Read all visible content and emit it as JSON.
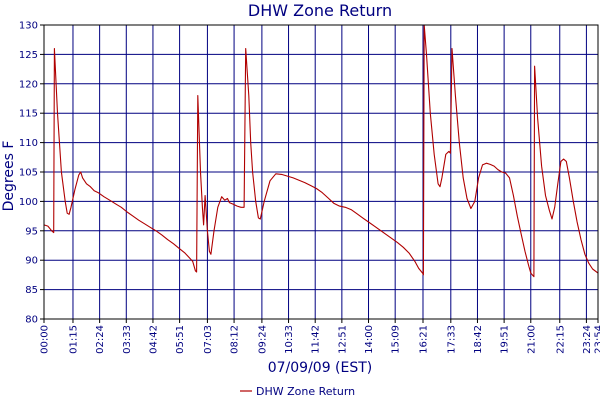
{
  "chart_data": {
    "type": "line",
    "title": "DHW Zone Return",
    "xlabel": "07/09/09 (EST)",
    "ylabel": "Degrees F",
    "ylim": [
      80,
      130
    ],
    "yticks": [
      80,
      85,
      90,
      95,
      100,
      105,
      110,
      115,
      120,
      125,
      130
    ],
    "xlim": [
      "00:00",
      "23:54"
    ],
    "xticks": [
      "00:00",
      "01:15",
      "02:24",
      "03:33",
      "04:42",
      "05:51",
      "07:03",
      "08:12",
      "09:24",
      "10:33",
      "11:42",
      "12:51",
      "14:00",
      "15:09",
      "16:21",
      "17:33",
      "18:42",
      "19:51",
      "21:00",
      "22:15",
      "23:24",
      "23:54"
    ],
    "grid": true,
    "legend_position": "bottom-center",
    "colors": {
      "line": "#b00000",
      "grid": "#000080",
      "axis": "#000000",
      "text": "#000080"
    },
    "series": [
      {
        "name": "DHW Zone Return",
        "points": [
          [
            "00:00",
            96
          ],
          [
            "00:10",
            95.8
          ],
          [
            "00:20",
            95
          ],
          [
            "00:25",
            94.7
          ],
          [
            "00:27",
            126
          ],
          [
            "00:35",
            115
          ],
          [
            "00:45",
            105
          ],
          [
            "00:55",
            100
          ],
          [
            "01:00",
            98
          ],
          [
            "01:05",
            97.8
          ],
          [
            "01:10",
            99
          ],
          [
            "01:20",
            102
          ],
          [
            "01:30",
            104.5
          ],
          [
            "01:35",
            105
          ],
          [
            "01:40",
            104
          ],
          [
            "01:50",
            103
          ],
          [
            "02:00",
            102.5
          ],
          [
            "02:10",
            101.8
          ],
          [
            "02:20",
            101.5
          ],
          [
            "02:35",
            100.8
          ],
          [
            "02:50",
            100.2
          ],
          [
            "03:05",
            99.6
          ],
          [
            "03:20",
            99
          ],
          [
            "03:35",
            98.2
          ],
          [
            "03:50",
            97.5
          ],
          [
            "04:05",
            96.8
          ],
          [
            "04:20",
            96.2
          ],
          [
            "04:35",
            95.6
          ],
          [
            "04:50",
            95
          ],
          [
            "05:05",
            94.3
          ],
          [
            "05:20",
            93.5
          ],
          [
            "05:35",
            92.8
          ],
          [
            "05:50",
            92
          ],
          [
            "06:05",
            91.2
          ],
          [
            "06:15",
            90.5
          ],
          [
            "06:25",
            89.8
          ],
          [
            "06:32",
            88.2
          ],
          [
            "06:35",
            88
          ],
          [
            "06:38",
            118
          ],
          [
            "06:45",
            105
          ],
          [
            "06:50",
            99
          ],
          [
            "06:53",
            96
          ],
          [
            "06:57",
            101
          ],
          [
            "07:03",
            95
          ],
          [
            "07:08",
            91.5
          ],
          [
            "07:12",
            91
          ],
          [
            "07:20",
            95
          ],
          [
            "07:30",
            99
          ],
          [
            "07:40",
            100.8
          ],
          [
            "07:48",
            100.2
          ],
          [
            "07:55",
            100.5
          ],
          [
            "08:00",
            99.8
          ],
          [
            "08:10",
            99.5
          ],
          [
            "08:20",
            99.2
          ],
          [
            "08:30",
            99
          ],
          [
            "08:38",
            99
          ],
          [
            "08:42",
            126
          ],
          [
            "08:50",
            118
          ],
          [
            "08:55",
            110
          ],
          [
            "09:00",
            105
          ],
          [
            "09:08",
            100
          ],
          [
            "09:15",
            97.2
          ],
          [
            "09:20",
            97
          ],
          [
            "09:30",
            100
          ],
          [
            "09:45",
            103.5
          ],
          [
            "10:00",
            104.7
          ],
          [
            "10:15",
            104.6
          ],
          [
            "10:30",
            104.3
          ],
          [
            "10:45",
            104
          ],
          [
            "11:00",
            103.6
          ],
          [
            "11:15",
            103.2
          ],
          [
            "11:30",
            102.7
          ],
          [
            "11:45",
            102.2
          ],
          [
            "12:00",
            101.5
          ],
          [
            "12:15",
            100.6
          ],
          [
            "12:30",
            99.7
          ],
          [
            "12:45",
            99.2
          ],
          [
            "13:00",
            99
          ],
          [
            "13:15",
            98.6
          ],
          [
            "13:30",
            97.9
          ],
          [
            "13:45",
            97.2
          ],
          [
            "14:00",
            96.5
          ],
          [
            "14:15",
            95.8
          ],
          [
            "14:30",
            95.1
          ],
          [
            "14:45",
            94.4
          ],
          [
            "15:00",
            93.7
          ],
          [
            "15:15",
            93
          ],
          [
            "15:30",
            92.2
          ],
          [
            "15:45",
            91.2
          ],
          [
            "16:00",
            89.8
          ],
          [
            "16:10",
            88.6
          ],
          [
            "16:20",
            87.8
          ],
          [
            "16:22",
            87.5
          ],
          [
            "16:24",
            130
          ],
          [
            "16:30",
            125
          ],
          [
            "16:40",
            115
          ],
          [
            "16:50",
            108
          ],
          [
            "17:00",
            103
          ],
          [
            "17:05",
            102.5
          ],
          [
            "17:10",
            104
          ],
          [
            "17:20",
            108
          ],
          [
            "17:28",
            108.5
          ],
          [
            "17:32",
            108.2
          ],
          [
            "17:36",
            126
          ],
          [
            "17:45",
            118
          ],
          [
            "17:55",
            110
          ],
          [
            "18:05",
            104
          ],
          [
            "18:15",
            100.5
          ],
          [
            "18:25",
            98.8
          ],
          [
            "18:35",
            100
          ],
          [
            "18:45",
            104
          ],
          [
            "18:55",
            106.2
          ],
          [
            "19:05",
            106.5
          ],
          [
            "19:15",
            106.3
          ],
          [
            "19:25",
            106
          ],
          [
            "19:35",
            105.4
          ],
          [
            "19:45",
            105
          ],
          [
            "19:55",
            104.8
          ],
          [
            "20:05",
            104
          ],
          [
            "20:15",
            101
          ],
          [
            "20:25",
            97.5
          ],
          [
            "20:35",
            94.5
          ],
          [
            "20:45",
            91.5
          ],
          [
            "20:55",
            89
          ],
          [
            "21:00",
            87.8
          ],
          [
            "21:08",
            87.2
          ],
          [
            "21:10",
            123
          ],
          [
            "21:18",
            114
          ],
          [
            "21:28",
            106
          ],
          [
            "21:38",
            101
          ],
          [
            "21:48",
            98.5
          ],
          [
            "21:55",
            97
          ],
          [
            "22:02",
            99
          ],
          [
            "22:10",
            103
          ],
          [
            "22:18",
            106.8
          ],
          [
            "22:25",
            107.2
          ],
          [
            "22:32",
            106.8
          ],
          [
            "22:40",
            104
          ],
          [
            "22:50",
            100
          ],
          [
            "23:00",
            96.5
          ],
          [
            "23:10",
            93.5
          ],
          [
            "23:20",
            91
          ],
          [
            "23:30",
            89.5
          ],
          [
            "23:40",
            88.5
          ],
          [
            "23:54",
            87.8
          ]
        ]
      }
    ]
  }
}
